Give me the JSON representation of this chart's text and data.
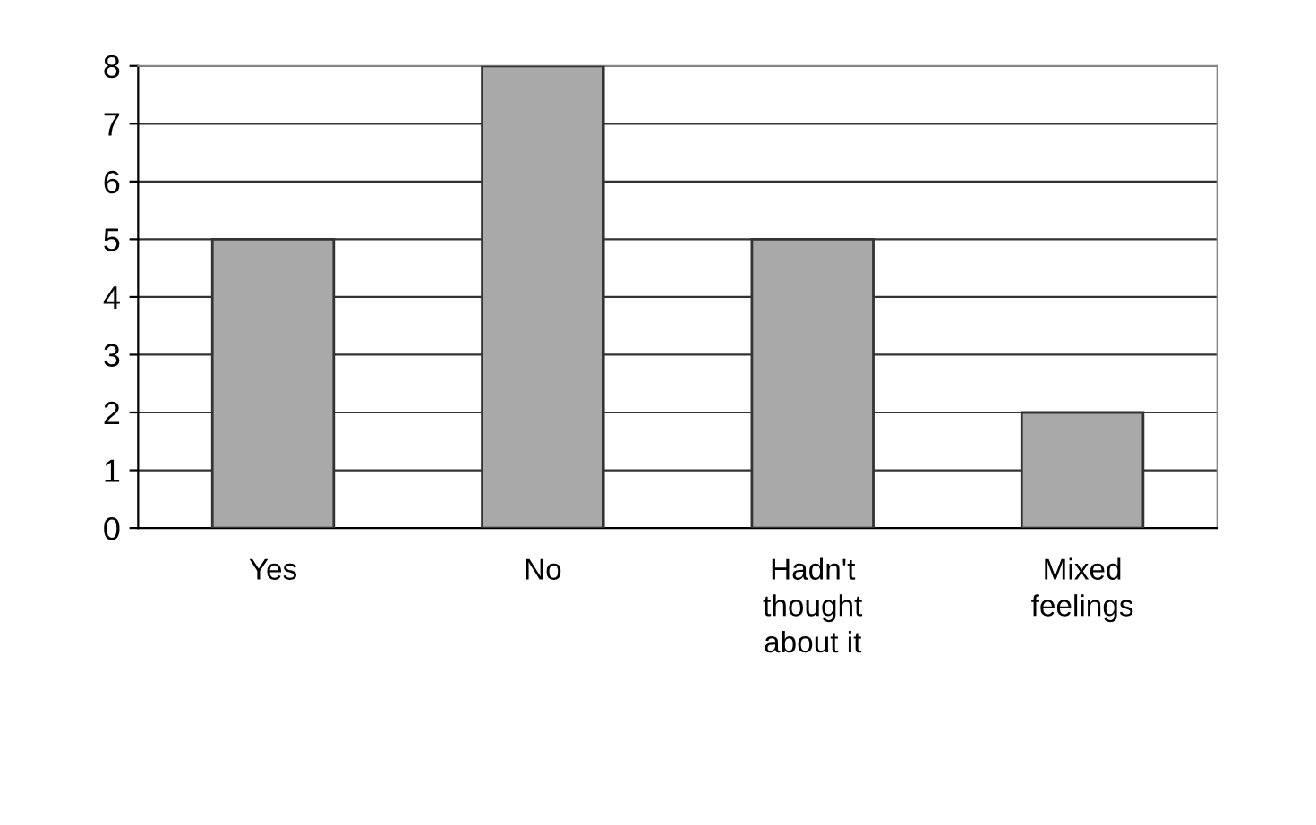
{
  "chart_data": {
    "type": "bar",
    "categories": [
      "Yes",
      "No",
      "Hadn't\nthought\nabout it",
      "Mixed\nfeelings"
    ],
    "values": [
      5,
      8,
      5,
      2
    ],
    "color": "#a9a9a9",
    "ylim": [
      0,
      8
    ],
    "yticks": [
      0,
      1,
      2,
      3,
      4,
      5,
      6,
      7,
      8
    ],
    "grid": "y",
    "legend": false
  }
}
